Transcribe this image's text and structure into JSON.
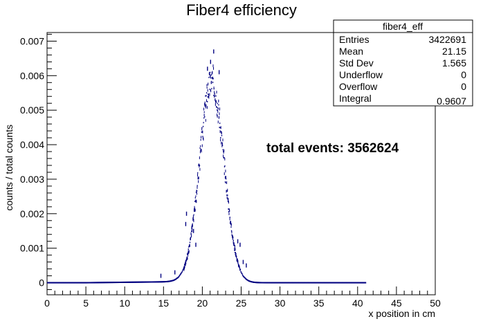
{
  "chart_data": {
    "type": "histogram",
    "title": "Fiber4 efficiency",
    "xlabel": "x position in cm",
    "ylabel": "counts / total counts",
    "xlim": [
      0,
      50
    ],
    "ylim": [
      -0.00035,
      0.00725
    ],
    "x_ticks": [
      "0",
      "5",
      "10",
      "15",
      "20",
      "25",
      "30",
      "35",
      "40",
      "45",
      "50"
    ],
    "y_ticks": [
      "0",
      "0.001",
      "0.002",
      "0.003",
      "0.004",
      "0.005",
      "0.006",
      "0.007"
    ],
    "annotation": "total events: 3562624",
    "series_color": "#000080",
    "data_range": [
      0,
      41
    ],
    "outliers": [
      {
        "x": 17.9,
        "y": 0.002
      },
      {
        "x": 17.8,
        "y": 0.0017
      },
      {
        "x": 18.6,
        "y": 0.0016
      },
      {
        "x": 18.8,
        "y": 0.0015
      },
      {
        "x": 19.1,
        "y": 0.0011
      },
      {
        "x": 24.5,
        "y": 0.0012
      },
      {
        "x": 24.8,
        "y": 0.0011
      },
      {
        "x": 25.2,
        "y": 0.0006
      },
      {
        "x": 25.6,
        "y": 0.0005
      },
      {
        "x": 16.4,
        "y": 0.0003
      },
      {
        "x": 14.6,
        "y": 0.0002
      },
      {
        "x": 21.4,
        "y": 0.0067
      },
      {
        "x": 21.0,
        "y": 0.0064
      },
      {
        "x": 20.6,
        "y": 0.0062
      },
      {
        "x": 22.1,
        "y": 0.0061
      }
    ],
    "peak": {
      "mean": 21.15,
      "sigma": 1.565,
      "height": 0.0058
    },
    "stats_box": {
      "title": "fiber4_eff",
      "rows": [
        {
          "label": "Entries",
          "value": "3422691"
        },
        {
          "label": "Mean",
          "value": "21.15"
        },
        {
          "label": "Std Dev",
          "value": "1.565"
        },
        {
          "label": "Underflow",
          "value": "0"
        },
        {
          "label": "Overflow",
          "value": "0"
        },
        {
          "label": "Integral",
          "value": "0.9607"
        }
      ]
    }
  }
}
